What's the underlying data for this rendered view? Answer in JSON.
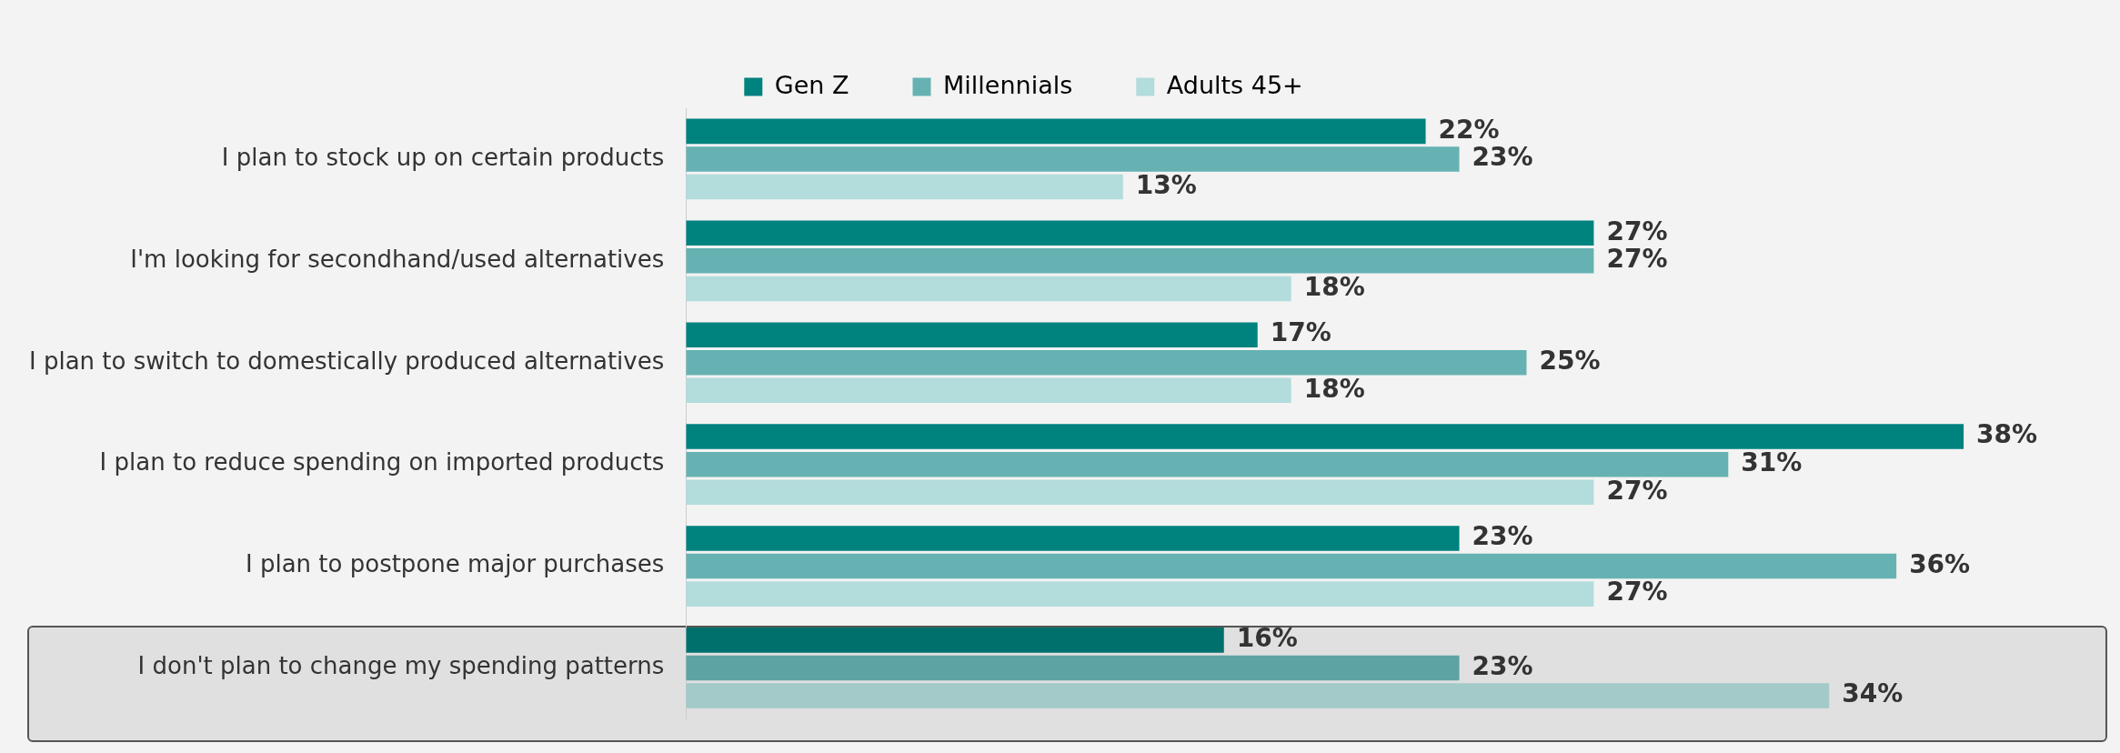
{
  "chart_data": {
    "type": "bar",
    "orientation": "horizontal",
    "categories": [
      "I plan to stock up on certain products",
      "I'm looking for secondhand/used alternatives",
      "I plan to switch to domestically produced alternatives",
      "I plan to reduce spending on imported products",
      "I plan to postpone major purchases",
      "I don't plan to change my spending patterns"
    ],
    "series": [
      {
        "name": "Gen Z",
        "color": "#00827f",
        "colors": [
          "#00827f",
          "#00827f",
          "#00827f",
          "#00827f",
          "#00827f",
          "#00706d"
        ],
        "values": [
          22,
          27,
          17,
          38,
          23,
          16
        ],
        "value_labels": [
          "22%",
          "27%",
          "17%",
          "38%",
          "23%",
          "16%"
        ]
      },
      {
        "name": "Millennials",
        "color": "#66b2b2",
        "colors": [
          "#66b2b2",
          "#66b2b2",
          "#66b2b2",
          "#66b2b2",
          "#66b2b2",
          "#5ea3a3"
        ],
        "values": [
          23,
          27,
          25,
          31,
          36,
          23
        ],
        "value_labels": [
          "23%",
          "27%",
          "25%",
          "31%",
          "36%",
          "23%"
        ]
      },
      {
        "name": "Adults 45+",
        "color": "#b3dcdc",
        "colors": [
          "#b3dcdc",
          "#b3dcdc",
          "#b3dcdc",
          "#b3dcdc",
          "#b3dcdc",
          "#a3c9c9"
        ],
        "values": [
          13,
          18,
          18,
          27,
          27,
          34
        ],
        "value_labels": [
          "13%",
          "18%",
          "18%",
          "27%",
          "27%",
          "34%"
        ]
      }
    ],
    "legend": "top",
    "grid": false
  }
}
